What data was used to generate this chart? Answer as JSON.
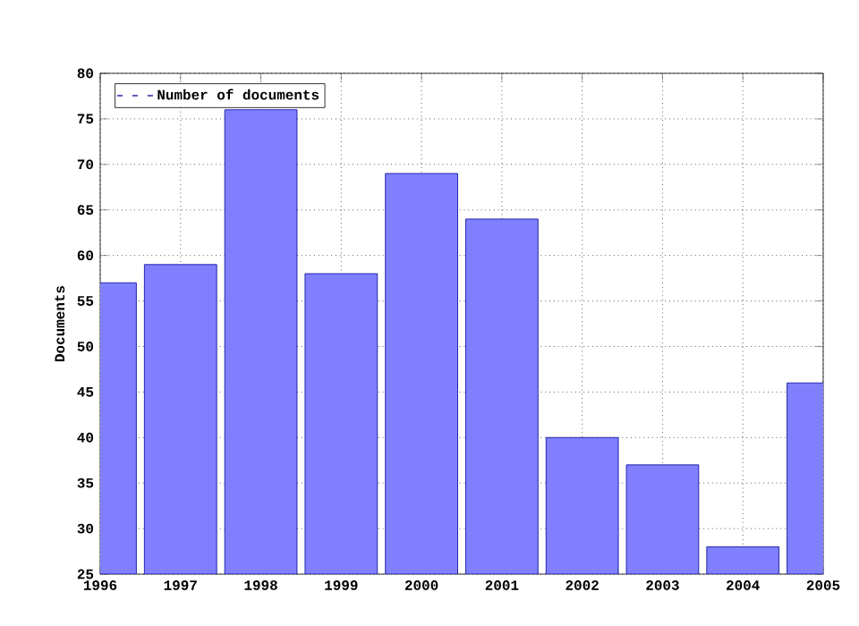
{
  "chart_data": {
    "type": "bar",
    "ylabel": "Documents",
    "x": [
      1996,
      1997,
      1998,
      1999,
      2000,
      2001,
      2002,
      2003,
      2004,
      2005
    ],
    "series": [
      {
        "name": "Number of documents",
        "color": "#8080ff",
        "values": [
          57,
          59,
          76,
          58,
          69,
          64,
          40,
          37,
          28,
          46
        ]
      }
    ],
    "xlim": [
      1996,
      2005
    ],
    "xticks": [
      1996,
      1997,
      1998,
      1999,
      2000,
      2001,
      2002,
      2003,
      2004,
      2005
    ],
    "ylim": [
      25,
      80
    ],
    "yticks": [
      25,
      30,
      35,
      40,
      45,
      50,
      55,
      60,
      65,
      70,
      75,
      80
    ],
    "grid": true,
    "legend": "top left"
  }
}
